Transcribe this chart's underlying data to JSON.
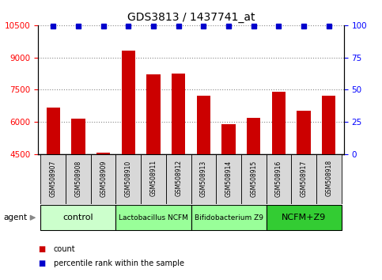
{
  "title": "GDS3813 / 1437741_at",
  "samples": [
    "GSM508907",
    "GSM508908",
    "GSM508909",
    "GSM508910",
    "GSM508911",
    "GSM508912",
    "GSM508913",
    "GSM508914",
    "GSM508915",
    "GSM508916",
    "GSM508917",
    "GSM508918"
  ],
  "counts": [
    6650,
    6150,
    4550,
    9300,
    8200,
    8250,
    7200,
    5900,
    6200,
    7400,
    6500,
    7200
  ],
  "percentiles": [
    99,
    99,
    99,
    99,
    99,
    99,
    99,
    99,
    99,
    99,
    99,
    99
  ],
  "bar_color": "#cc0000",
  "dot_color": "#0000cc",
  "ylim_left": [
    4500,
    10500
  ],
  "ylim_right": [
    0,
    100
  ],
  "yticks_left": [
    4500,
    6000,
    7500,
    9000,
    10500
  ],
  "yticks_right": [
    0,
    25,
    50,
    75,
    100
  ],
  "groups": [
    {
      "label": "control",
      "start": 0,
      "end": 2,
      "color": "#ccffcc",
      "fontsize": 8
    },
    {
      "label": "Lactobacillus NCFM",
      "start": 3,
      "end": 5,
      "color": "#99ff99",
      "fontsize": 6.5
    },
    {
      "label": "Bifidobacterium Z9",
      "start": 6,
      "end": 8,
      "color": "#99ff99",
      "fontsize": 6.5
    },
    {
      "label": "NCFM+Z9",
      "start": 9,
      "end": 11,
      "color": "#33cc33",
      "fontsize": 8
    }
  ],
  "sample_box_color": "#d8d8d8",
  "legend_count_color": "#cc0000",
  "legend_pct_color": "#0000cc",
  "background_color": "#ffffff",
  "grid_color": "#888888"
}
